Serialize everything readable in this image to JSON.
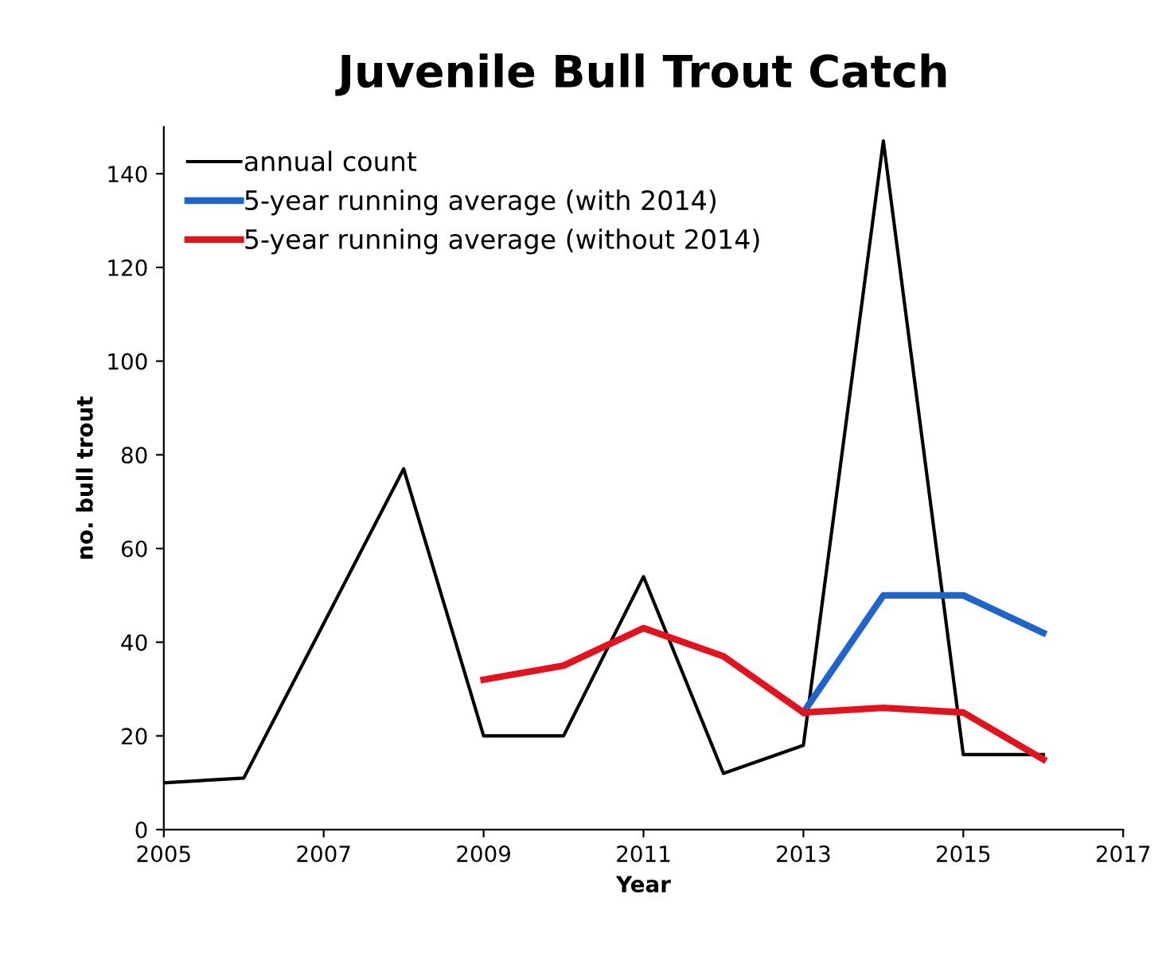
{
  "chart_data": {
    "type": "line",
    "title": "Juvenile Bull Trout Catch",
    "xlabel": "Year",
    "ylabel": "no. bull trout",
    "xlim": [
      2005,
      2017
    ],
    "xticks": [
      2005,
      2007,
      2009,
      2011,
      2013,
      2015,
      2017
    ],
    "ylim": [
      0,
      150
    ],
    "yticks": [
      0,
      20,
      40,
      60,
      80,
      100,
      120,
      140
    ],
    "grid": false,
    "legend": "top left",
    "marker": "none",
    "line_style": "solid",
    "series": [
      {
        "name": "annual count",
        "color": "#000000",
        "x": [
          2005,
          2006,
          2007,
          2008,
          2009,
          2010,
          2011,
          2012,
          2013,
          2014,
          2015,
          2016
        ],
        "values": [
          10,
          11,
          44,
          77,
          20,
          20,
          54,
          12,
          18,
          147,
          16,
          16
        ]
      },
      {
        "name": "5-year running average (with 2014)",
        "color": "#1f64c8",
        "x": [
          2013,
          2014,
          2015,
          2016
        ],
        "values": [
          25,
          50,
          50,
          42
        ]
      },
      {
        "name": "5-year running average (without 2014)",
        "color": "#e0141e",
        "x": [
          2009,
          2010,
          2011,
          2012,
          2013,
          2014,
          2015,
          2016
        ],
        "values": [
          32,
          35,
          43,
          37,
          25,
          26,
          25,
          15
        ]
      }
    ]
  }
}
